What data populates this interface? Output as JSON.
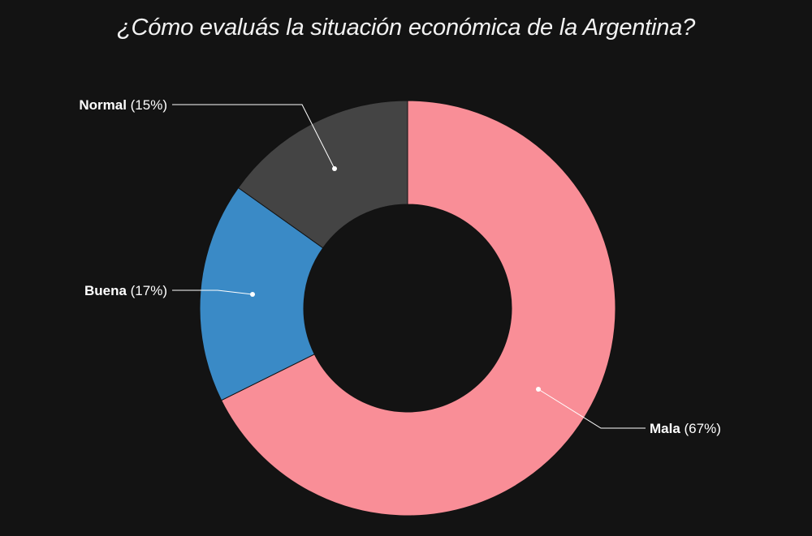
{
  "chart_data": {
    "type": "pie",
    "variant": "donut",
    "title": "¿Cómo evaluás la situación económica de la Argentina?",
    "start_angle_deg": 0,
    "direction": "clockwise",
    "slices": [
      {
        "label": "Mala",
        "pct_text": "(67%)",
        "value": 67,
        "color": "#f98e97"
      },
      {
        "label": "Buena",
        "pct_text": "(17%)",
        "value": 17,
        "color": "#3a8ac6"
      },
      {
        "label": "Normal",
        "pct_text": "(15%)",
        "value": 15,
        "color": "#444444"
      }
    ]
  },
  "colors": {
    "background": "#131313",
    "slice_border": "#131313",
    "leader_line": "#ffffff"
  }
}
